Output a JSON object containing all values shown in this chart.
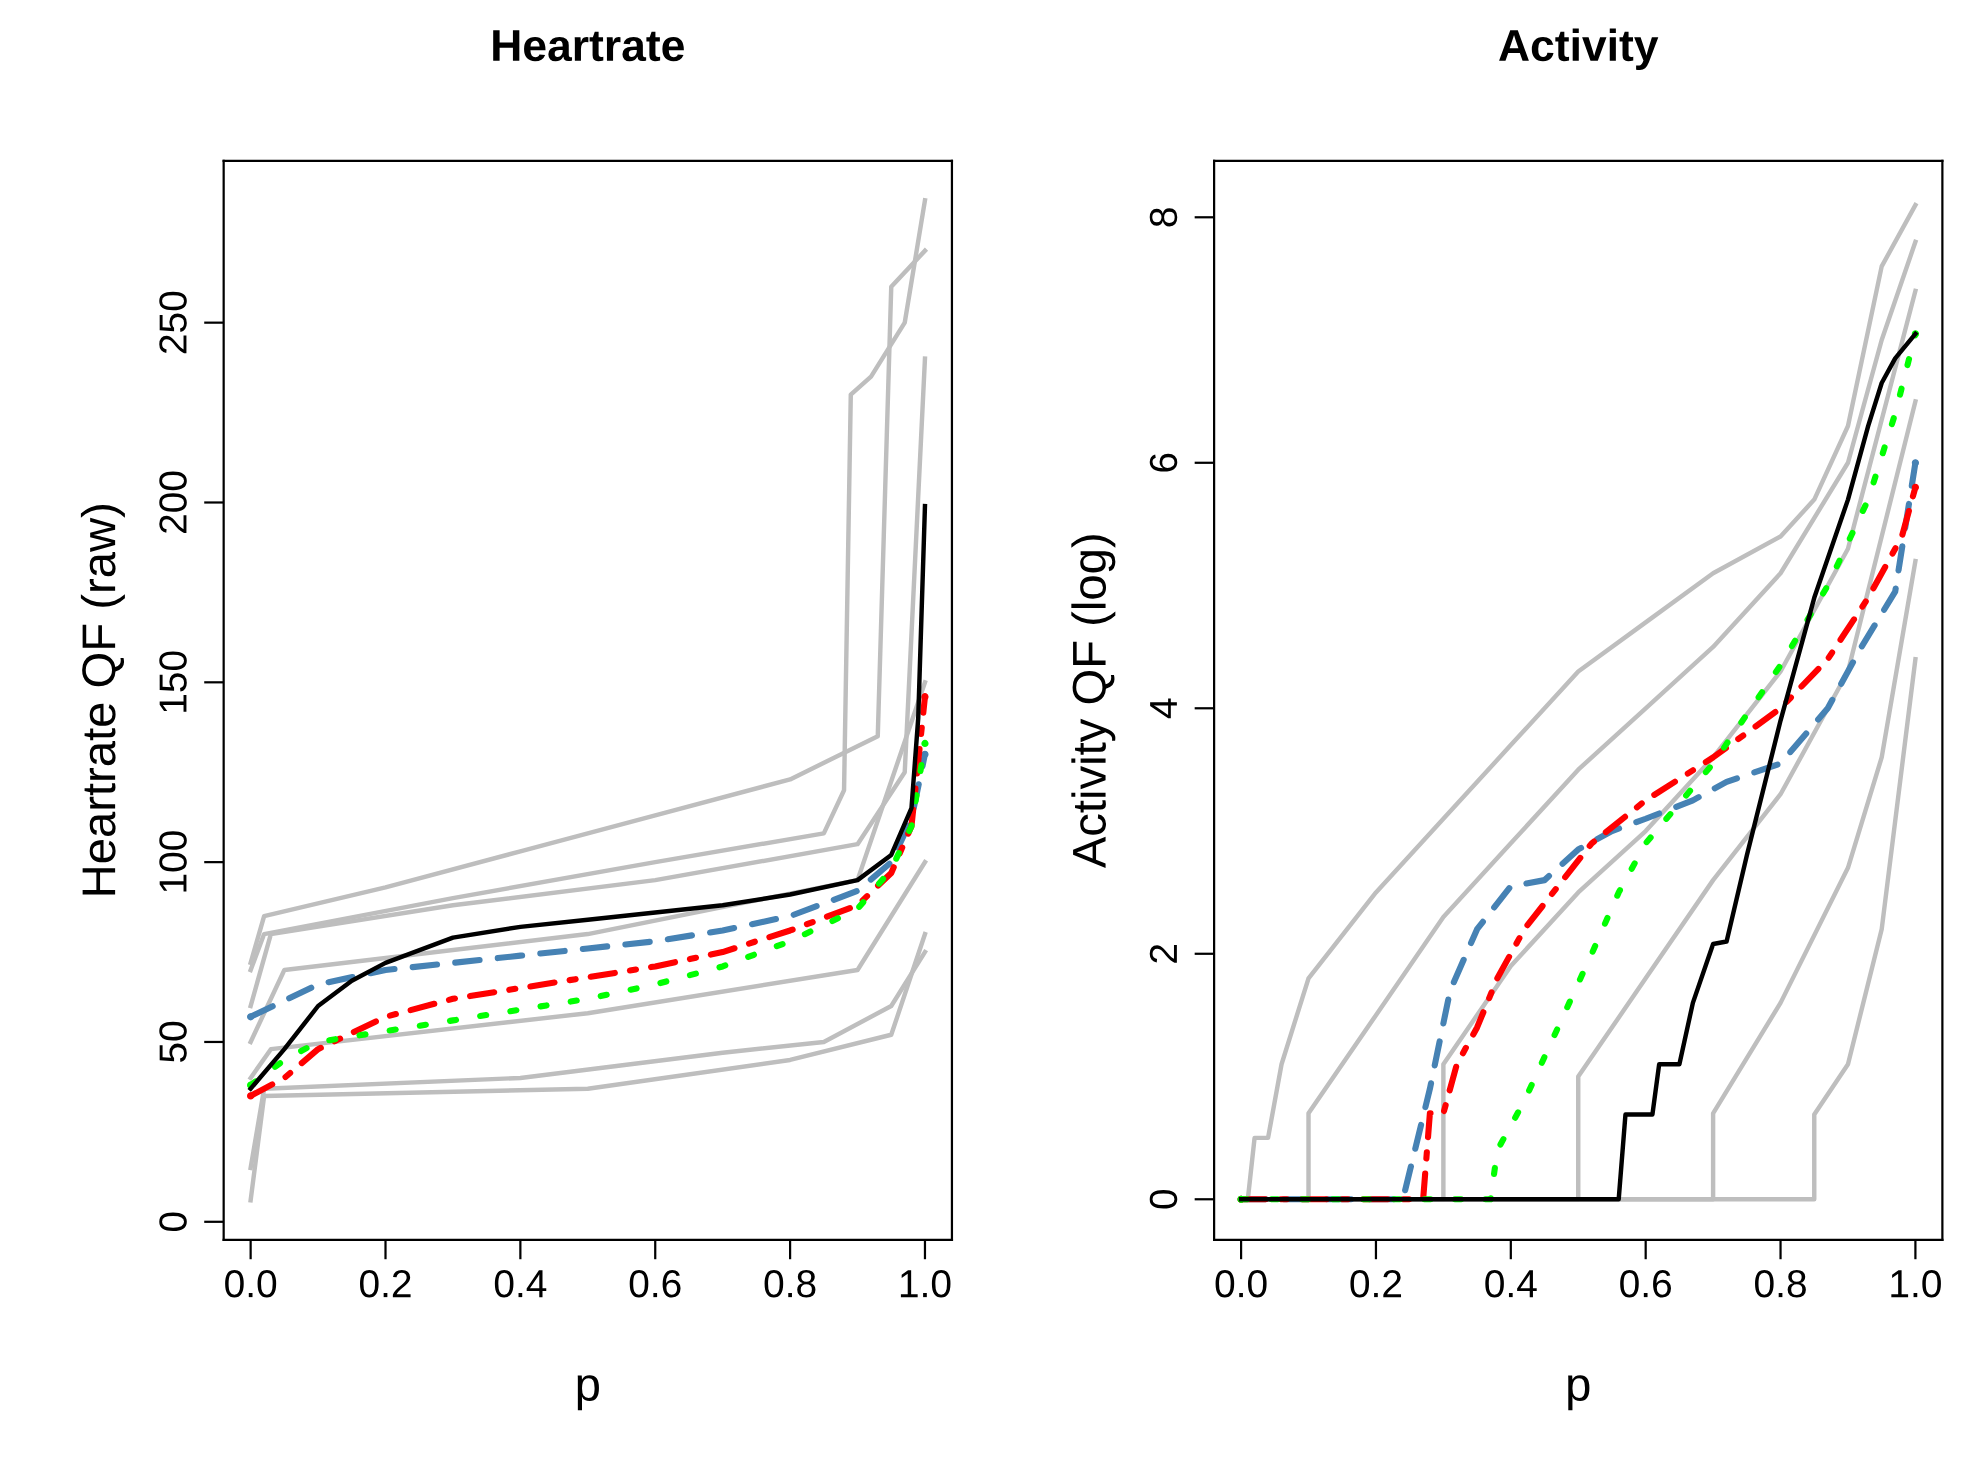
{
  "chart_data": [
    {
      "type": "line",
      "title": "Heartrate",
      "xlabel": "p",
      "ylabel": "Heartrate QF (raw)",
      "xlim": [
        -0.04,
        1.04
      ],
      "ylim": [
        -5,
        295
      ],
      "xticks": [
        {
          "value": 0,
          "label": "0.0"
        },
        {
          "value": 0.2,
          "label": "0.2"
        },
        {
          "value": 0.4,
          "label": "0.4"
        },
        {
          "value": 0.6,
          "label": "0.6"
        },
        {
          "value": 0.8,
          "label": "0.8"
        },
        {
          "value": 1,
          "label": "1.0"
        }
      ],
      "yticks": [
        0,
        50,
        100,
        150,
        200,
        250
      ],
      "grid": false,
      "series": [
        {
          "color": "#bebebe",
          "line_style": "solid",
          "x": [
            0,
            0.02,
            0.3,
            0.6,
            0.85,
            0.88,
            0.89,
            0.92,
            0.97,
            1.0
          ],
          "values": [
            70,
            80,
            90,
            100,
            108,
            120,
            230,
            235,
            250,
            284
          ]
        },
        {
          "color": "#bebebe",
          "line_style": "solid",
          "x": [
            0,
            0.02,
            0.2,
            0.4,
            0.6,
            0.8,
            0.93,
            0.95,
            1.0
          ],
          "values": [
            72,
            85,
            93,
            103,
            113,
            123,
            135,
            260,
            270
          ]
        },
        {
          "color": "#bebebe",
          "line_style": "solid",
          "x": [
            0,
            0.03,
            0.3,
            0.6,
            0.9,
            0.97,
            1.0
          ],
          "values": [
            60,
            80,
            88,
            95,
            105,
            125,
            240
          ]
        },
        {
          "color": "#bebebe",
          "line_style": "solid",
          "x": [
            0,
            0.05,
            0.5,
            0.9,
            1.0
          ],
          "values": [
            50,
            70,
            80,
            95,
            150
          ]
        },
        {
          "color": "#bebebe",
          "line_style": "solid",
          "x": [
            0,
            0.03,
            0.5,
            0.9,
            1.0
          ],
          "values": [
            40,
            48,
            58,
            70,
            100
          ]
        },
        {
          "color": "#bebebe",
          "line_style": "solid",
          "x": [
            0,
            0.02,
            0.5,
            0.8,
            0.95,
            1.0
          ],
          "values": [
            6,
            35,
            37,
            45,
            52,
            80
          ]
        },
        {
          "color": "#bebebe",
          "line_style": "solid",
          "x": [
            0,
            0.02,
            0.4,
            0.7,
            0.85,
            0.95,
            1.0
          ],
          "values": [
            15,
            37,
            40,
            47,
            50,
            60,
            75
          ]
        },
        {
          "color": "#4682b4",
          "line_style": "dashed",
          "x": [
            0,
            0.1,
            0.2,
            0.3,
            0.4,
            0.5,
            0.6,
            0.7,
            0.8,
            0.9,
            0.95,
            0.98,
            1.0
          ],
          "values": [
            57,
            66,
            70,
            72,
            74,
            76,
            78,
            81,
            85,
            92,
            100,
            112,
            130
          ]
        },
        {
          "color": "#ff0000",
          "line_style": "dashdot",
          "x": [
            0,
            0.05,
            0.1,
            0.2,
            0.3,
            0.4,
            0.5,
            0.6,
            0.7,
            0.8,
            0.9,
            0.95,
            0.98,
            1.0
          ],
          "values": [
            35,
            40,
            48,
            57,
            62,
            65,
            68,
            71,
            75,
            81,
            88,
            97,
            110,
            146
          ]
        },
        {
          "color": "#00ff00",
          "line_style": "dotted",
          "x": [
            0,
            0.05,
            0.1,
            0.2,
            0.3,
            0.4,
            0.5,
            0.6,
            0.7,
            0.8,
            0.9,
            0.95,
            0.98,
            1.0
          ],
          "values": [
            38,
            45,
            50,
            53,
            56,
            59,
            62,
            66,
            71,
            78,
            87,
            98,
            110,
            133
          ]
        },
        {
          "color": "#000000",
          "line_style": "solid",
          "x": [
            0,
            0.05,
            0.1,
            0.15,
            0.2,
            0.3,
            0.4,
            0.5,
            0.6,
            0.7,
            0.8,
            0.9,
            0.95,
            0.98,
            0.99,
            1.0
          ],
          "values": [
            37,
            48,
            60,
            67,
            72,
            79,
            82,
            84,
            86,
            88,
            91,
            95,
            102,
            115,
            140,
            199
          ]
        }
      ]
    },
    {
      "type": "line",
      "title": "Activity",
      "xlabel": "p",
      "ylabel": "Activity QF (log)",
      "xlim": [
        -0.04,
        1.04
      ],
      "ylim": [
        -0.33,
        8.46
      ],
      "xticks": [
        {
          "value": 0,
          "label": "0.0"
        },
        {
          "value": 0.2,
          "label": "0.2"
        },
        {
          "value": 0.4,
          "label": "0.4"
        },
        {
          "value": 0.6,
          "label": "0.6"
        },
        {
          "value": 0.8,
          "label": "0.8"
        },
        {
          "value": 1,
          "label": "1.0"
        }
      ],
      "yticks": [
        0,
        2,
        4,
        6,
        8
      ],
      "grid": false,
      "series": [
        {
          "color": "#bebebe",
          "line_style": "solid",
          "x": [
            0,
            0.01,
            0.02,
            0.04,
            0.06,
            0.1,
            0.2,
            0.3,
            0.4,
            0.5,
            0.6,
            0.7,
            0.8,
            0.85,
            0.9,
            0.95,
            1.0
          ],
          "values": [
            0,
            0,
            0.5,
            0.5,
            1.1,
            1.8,
            2.5,
            3.1,
            3.7,
            4.3,
            4.7,
            5.1,
            5.4,
            5.7,
            6.3,
            7.6,
            8.1
          ]
        },
        {
          "color": "#bebebe",
          "line_style": "solid",
          "x": [
            0,
            0.1,
            0.1,
            0.2,
            0.3,
            0.4,
            0.5,
            0.6,
            0.7,
            0.8,
            0.9,
            0.95,
            1.0
          ],
          "values": [
            0,
            0,
            0.7,
            1.5,
            2.3,
            2.9,
            3.5,
            4.0,
            4.5,
            5.1,
            6.0,
            7.0,
            7.8
          ]
        },
        {
          "color": "#bebebe",
          "line_style": "solid",
          "x": [
            0,
            0.3,
            0.3,
            0.4,
            0.5,
            0.6,
            0.7,
            0.8,
            0.9,
            1.0
          ],
          "values": [
            0,
            0,
            1.1,
            1.9,
            2.5,
            3.0,
            3.6,
            4.3,
            5.3,
            7.4
          ]
        },
        {
          "color": "#bebebe",
          "line_style": "solid",
          "x": [
            0,
            0.5,
            0.5,
            0.6,
            0.7,
            0.8,
            0.9,
            1.0
          ],
          "values": [
            0,
            0,
            1.0,
            1.8,
            2.6,
            3.3,
            4.3,
            6.5
          ]
        },
        {
          "color": "#bebebe",
          "line_style": "solid",
          "x": [
            0,
            0.7,
            0.7,
            0.8,
            0.9,
            0.95,
            1.0
          ],
          "values": [
            0,
            0,
            0.7,
            1.6,
            2.7,
            3.6,
            5.2
          ]
        },
        {
          "color": "#bebebe",
          "line_style": "solid",
          "x": [
            0,
            0.85,
            0.85,
            0.9,
            0.95,
            1.0
          ],
          "values": [
            0,
            0,
            0.69,
            1.1,
            2.2,
            4.4
          ]
        },
        {
          "color": "#4682b4",
          "line_style": "dashed",
          "x": [
            0,
            0.24,
            0.28,
            0.31,
            0.35,
            0.4,
            0.45,
            0.5,
            0.55,
            0.6,
            0.67,
            0.72,
            0.8,
            0.87,
            0.92,
            0.97,
            1.0
          ],
          "values": [
            0,
            0,
            0.9,
            1.7,
            2.2,
            2.55,
            2.6,
            2.85,
            3.0,
            3.1,
            3.25,
            3.4,
            3.55,
            4.0,
            4.5,
            4.95,
            6.0
          ]
        },
        {
          "color": "#ff0000",
          "line_style": "dashdot",
          "x": [
            0,
            0.27,
            0.28,
            0.3,
            0.32,
            0.35,
            0.38,
            0.42,
            0.47,
            0.52,
            0.6,
            0.7,
            0.8,
            0.87,
            0.93,
            0.98,
            1.0
          ],
          "values": [
            0,
            0,
            0.7,
            0.7,
            1.1,
            1.4,
            1.8,
            2.2,
            2.55,
            2.9,
            3.25,
            3.6,
            4.0,
            4.4,
            4.9,
            5.4,
            5.8
          ]
        },
        {
          "color": "#00ff00",
          "line_style": "dotted",
          "x": [
            0,
            0.37,
            0.38,
            0.42,
            0.47,
            0.52,
            0.56,
            0.6,
            0.7,
            0.8,
            0.87,
            0.93,
            0.97,
            1.0
          ],
          "values": [
            0,
            0,
            0.4,
            0.8,
            1.4,
            2.0,
            2.5,
            2.9,
            3.55,
            4.35,
            5.0,
            5.7,
            6.4,
            7.05
          ]
        },
        {
          "color": "#000000",
          "line_style": "solid",
          "x": [
            0,
            0.56,
            0.57,
            0.61,
            0.62,
            0.65,
            0.67,
            0.7,
            0.72,
            0.75,
            0.8,
            0.85,
            0.9,
            0.93,
            0.95,
            0.97,
            1.0
          ],
          "values": [
            0,
            0,
            0.69,
            0.69,
            1.1,
            1.1,
            1.6,
            2.08,
            2.1,
            2.8,
            3.9,
            4.9,
            5.7,
            6.3,
            6.65,
            6.85,
            7.05
          ]
        }
      ]
    }
  ]
}
